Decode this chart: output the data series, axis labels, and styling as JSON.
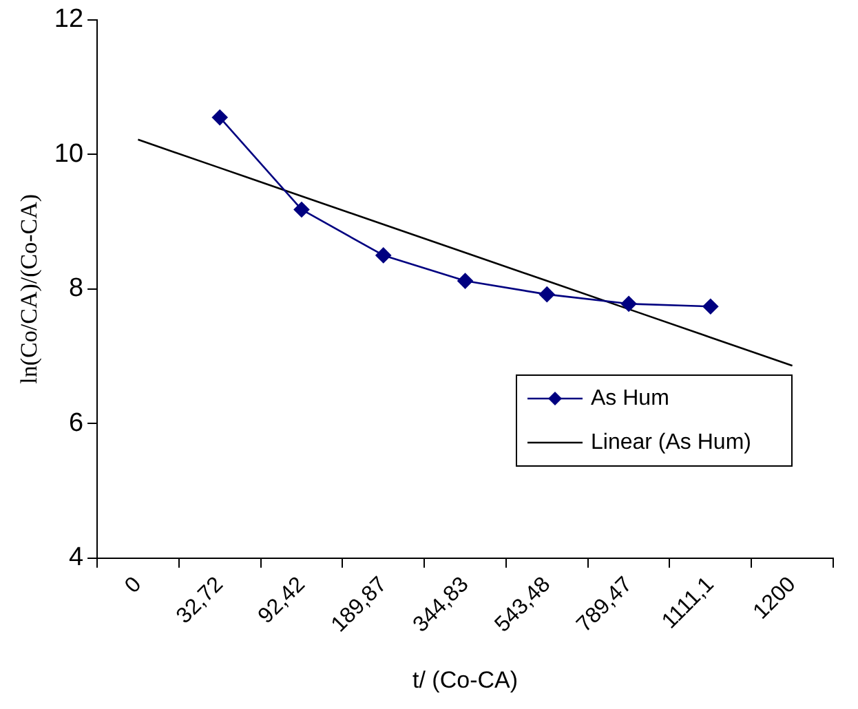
{
  "chart_data": {
    "type": "line",
    "xlabel": "t/ (Co-CA)",
    "ylabel": "ln(Co/CA)/(Co-CA)",
    "categories": [
      "0",
      "32,72",
      "92,42",
      "189,87",
      "344,83",
      "543,48",
      "789,47",
      "1111,1",
      "1200"
    ],
    "series": [
      {
        "name": "As Hum",
        "color": "#000080",
        "marker": "diamond",
        "values": [
          null,
          10.55,
          9.18,
          8.5,
          8.12,
          7.92,
          7.78,
          7.74,
          null
        ]
      },
      {
        "name": "Linear (As Hum)",
        "color": "#000000",
        "marker": "none",
        "values": [
          10.22,
          9.8,
          9.38,
          8.96,
          8.54,
          8.12,
          7.7,
          7.28,
          6.86
        ]
      }
    ],
    "ylim": [
      4,
      12
    ],
    "yticks": [
      4,
      6,
      8,
      10,
      12
    ],
    "grid": false,
    "legend": "right"
  }
}
